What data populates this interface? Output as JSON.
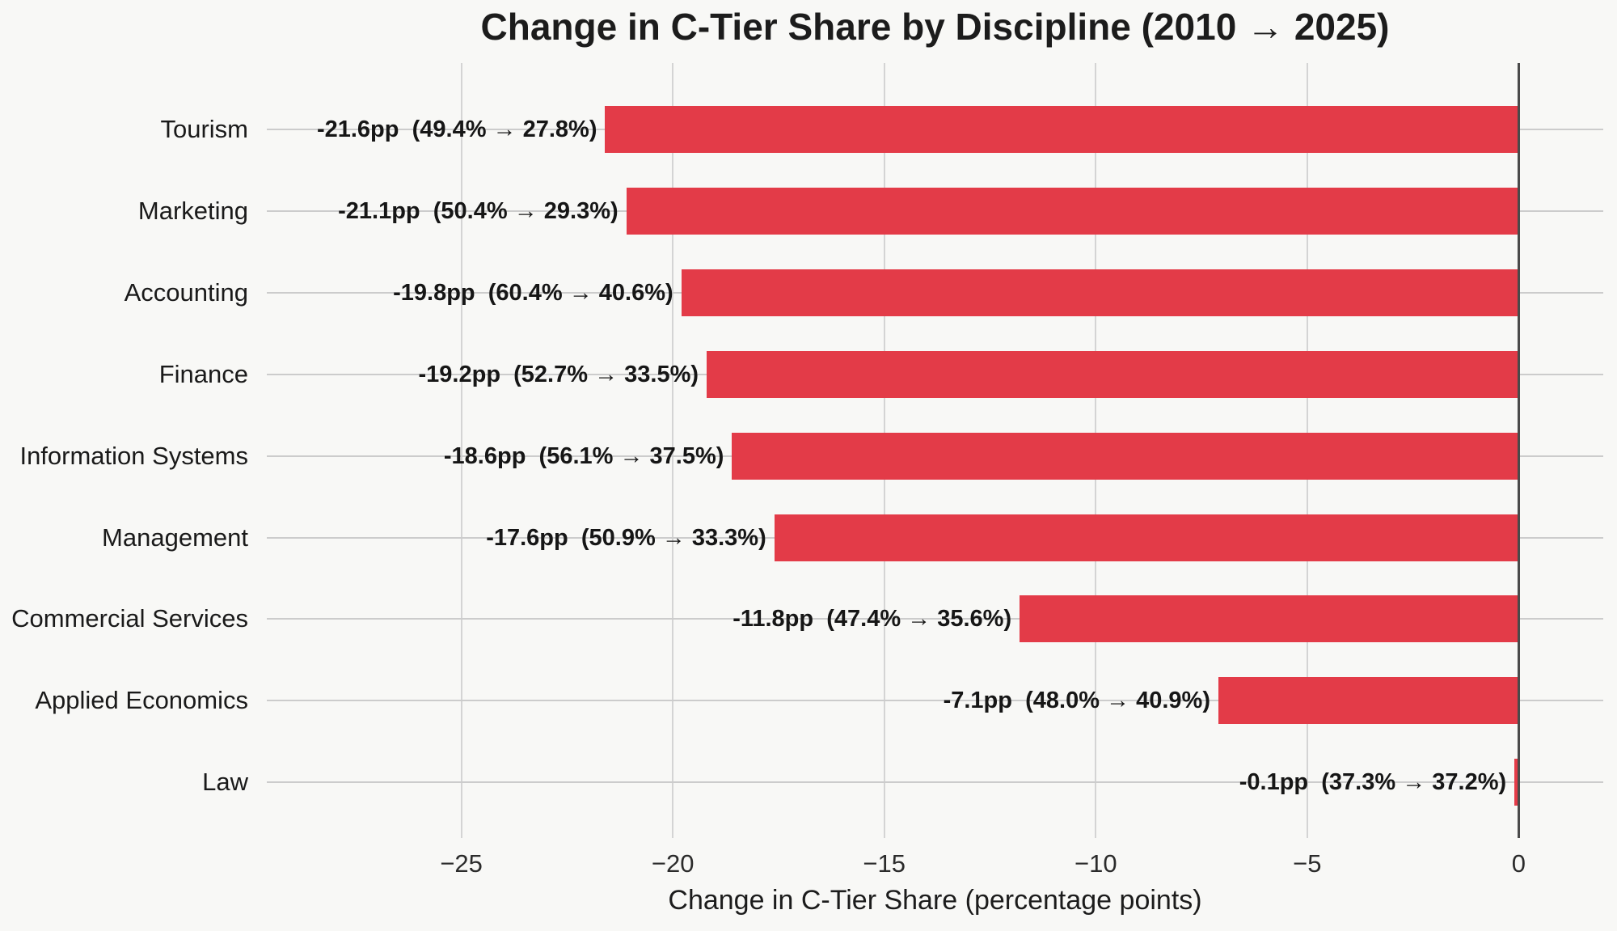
{
  "chart_data": {
    "type": "bar",
    "orientation": "horizontal",
    "title": "Change in C-Tier Share by Discipline (2010 → 2025)",
    "xlabel": "Change in C-Tier Share (percentage points)",
    "categories": [
      "Tourism",
      "Marketing",
      "Accounting",
      "Finance",
      "Information Systems",
      "Management",
      "Commercial Services",
      "Applied Economics",
      "Law"
    ],
    "values": [
      -21.6,
      -21.1,
      -19.8,
      -19.2,
      -18.6,
      -17.6,
      -11.8,
      -7.1,
      -0.1
    ],
    "share_2010_pct": [
      49.4,
      50.4,
      60.4,
      52.7,
      56.1,
      50.9,
      47.4,
      48.0,
      37.3
    ],
    "share_2025_pct": [
      27.8,
      29.3,
      40.6,
      33.5,
      37.5,
      33.3,
      35.6,
      40.9,
      37.2
    ],
    "bar_annotations": [
      "-21.6pp  (49.4% → 27.8%)",
      "-21.1pp  (50.4% → 29.3%)",
      "-19.8pp  (60.4% → 40.6%)",
      "-19.2pp  (52.7% → 33.5%)",
      "-18.6pp  (56.1% → 37.5%)",
      "-17.6pp  (50.9% → 33.3%)",
      "-11.8pp  (47.4% → 35.6%)",
      "-7.1pp  (48.0% → 40.9%)",
      "-0.1pp  (37.3% → 37.2%)"
    ],
    "x_ticks": [
      -25,
      -20,
      -15,
      -10,
      -5,
      0
    ],
    "x_tick_labels": [
      "−25",
      "−20",
      "−15",
      "−10",
      "−5",
      "0"
    ],
    "xlim": [
      -29.6,
      2.0
    ],
    "grid": true,
    "legend_position": "none",
    "colors": {
      "bar": "#e33b48",
      "background": "#f8f8f6",
      "gridline": "#cfcfcf",
      "zero_line": "#4a4a4a",
      "text": "#1c1c1c"
    }
  }
}
